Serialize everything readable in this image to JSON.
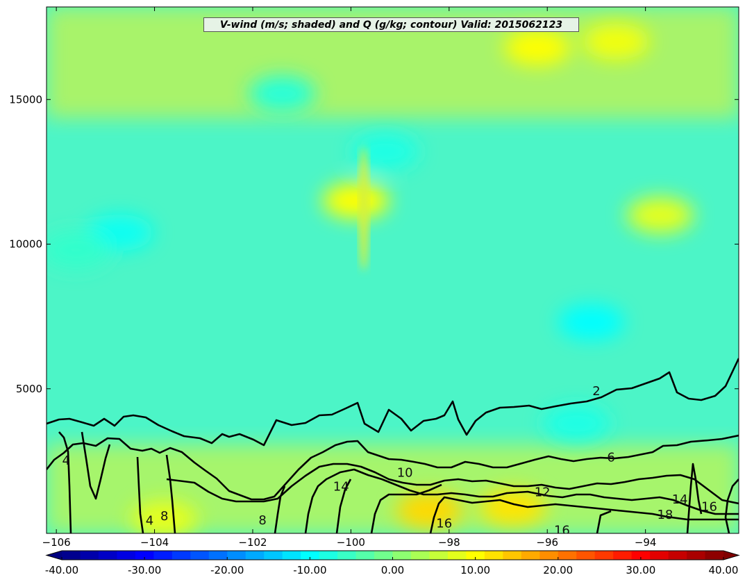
{
  "chart_data": {
    "type": "heatmap",
    "title": "V-wind (m/s; shaded) and Q (g/kg; contour) Valid: 2015062123",
    "xlabel": "",
    "ylabel": "",
    "xlim": [
      -106.2,
      -92.1
    ],
    "ylim": [
      0,
      18200
    ],
    "x_ticks": [
      -106,
      -104,
      -102,
      -100,
      -98,
      -96,
      -94
    ],
    "y_ticks": [
      5000,
      10000,
      15000
    ],
    "shaded_field": {
      "name": "V-wind (m/s)",
      "colorbar_range": [
        -40,
        40
      ],
      "colorbar_ticks": [
        -40,
        -30,
        -20,
        -10,
        0,
        10,
        20,
        30,
        40
      ],
      "colorbar_tick_labels": [
        "-40.00",
        "-30.00",
        "-20.00",
        "-10.00",
        "0.00",
        "10.00",
        "20.00",
        "30.00",
        "40.00"
      ],
      "colorbar_levels": 36,
      "features": [
        {
          "x": -104.7,
          "y": 10400,
          "value": -9
        },
        {
          "x": -105.6,
          "y": 9800,
          "value": -6
        },
        {
          "x": -101.4,
          "y": 15200,
          "value": -7
        },
        {
          "x": -99.3,
          "y": 13200,
          "value": -8
        },
        {
          "x": -95.1,
          "y": 7300,
          "value": -10
        },
        {
          "x": -95.4,
          "y": 3800,
          "value": -8
        },
        {
          "x": -99.9,
          "y": 11500,
          "value": 10
        },
        {
          "x": -96.2,
          "y": 16800,
          "value": 10
        },
        {
          "x": -94.6,
          "y": 17000,
          "value": 9
        },
        {
          "x": -93.7,
          "y": 11000,
          "value": 8
        },
        {
          "x": -98.4,
          "y": 800,
          "value": 13
        },
        {
          "x": -96.7,
          "y": 900,
          "value": 12
        },
        {
          "x": -103.8,
          "y": 500,
          "value": 8
        }
      ]
    },
    "contour_field": {
      "name": "Q (g/kg)",
      "levels": [
        2,
        4,
        6,
        8,
        10,
        12,
        14,
        16,
        18
      ],
      "labels": [
        {
          "text": "2",
          "x": -95.0,
          "y": 4900
        },
        {
          "text": "4",
          "x": -105.8,
          "y": 2500
        },
        {
          "text": "4",
          "x": -104.1,
          "y": 420
        },
        {
          "text": "6",
          "x": -94.7,
          "y": 2600
        },
        {
          "text": "8",
          "x": -103.8,
          "y": 580
        },
        {
          "text": "8",
          "x": -101.8,
          "y": 430
        },
        {
          "text": "10",
          "x": -98.9,
          "y": 2080
        },
        {
          "text": "12",
          "x": -96.1,
          "y": 1400
        },
        {
          "text": "14",
          "x": -100.2,
          "y": 1600
        },
        {
          "text": "14",
          "x": -93.3,
          "y": 1150
        },
        {
          "text": "16",
          "x": -98.1,
          "y": 330
        },
        {
          "text": "16",
          "x": -95.7,
          "y": 80
        },
        {
          "text": "16",
          "x": -92.7,
          "y": 900
        },
        {
          "text": "18",
          "x": -93.6,
          "y": 620
        }
      ]
    },
    "grid": false,
    "legend": "colorbar-bottom"
  }
}
